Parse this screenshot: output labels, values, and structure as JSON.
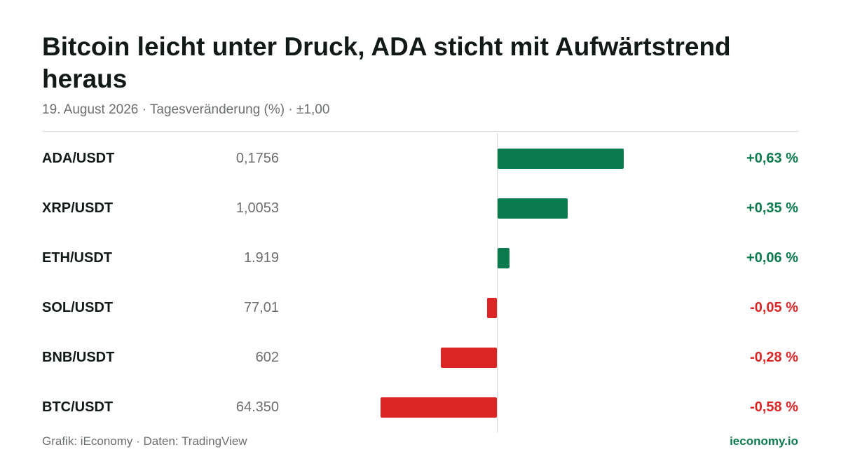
{
  "title": "Bitcoin leicht unter Druck, ADA sticht mit Aufwärtstrend heraus",
  "subtitle": "19. August 2026 · Tagesveränderung (%) · ±1,00",
  "footer": {
    "source": "Grafik: iEconomy · Daten: TradingView",
    "brand": "ieconomy.io"
  },
  "colors": {
    "positive": "#0b7a4d",
    "negative": "#dc2626"
  },
  "chart_data": {
    "type": "bar",
    "orientation": "horizontal",
    "title": "Bitcoin leicht unter Druck, ADA sticht mit Aufwärtstrend heraus",
    "subtitle": "19. August 2026 · Tagesveränderung (%) · ±1,00",
    "xlim": [
      -1,
      1
    ],
    "grid": false,
    "categories": [
      "ADA/USDT",
      "XRP/USDT",
      "ETH/USDT",
      "SOL/USDT",
      "BNB/USDT",
      "BTC/USDT"
    ],
    "prices": [
      "0,1756",
      "1,0053",
      "1.919",
      "77,01",
      "602",
      "64.350"
    ],
    "values": [
      0.63,
      0.35,
      0.06,
      -0.05,
      -0.28,
      -0.58
    ],
    "labels": [
      "+0,63 %",
      "+0,35 %",
      "+0,06 %",
      "-0,05 %",
      "-0,28 %",
      "-0,58 %"
    ]
  }
}
